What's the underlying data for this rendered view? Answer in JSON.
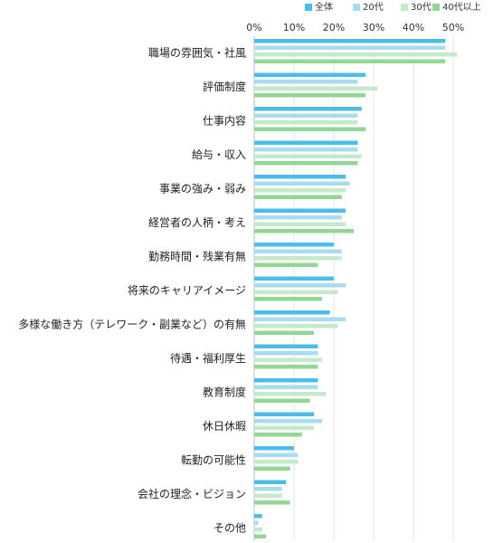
{
  "chart_data": {
    "type": "bar",
    "orientation": "horizontal",
    "categories": [
      "職場の雰囲気・社風",
      "評価制度",
      "仕事内容",
      "給与・収入",
      "事業の強み・弱み",
      "経営者の人柄・考え",
      "勤務時間・残業有無",
      "将来のキャリアイメージ",
      "多様な働き方（テレワーク・副業など）の有無",
      "待遇・福利厚生",
      "教育制度",
      "休日休暇",
      "転勤の可能性",
      "会社の理念・ビジョン",
      "その他"
    ],
    "series": [
      {
        "name": "全体",
        "color": "#4bbde8",
        "values": [
          48,
          28,
          27,
          26,
          23,
          23,
          20,
          20,
          19,
          16,
          16,
          15,
          10,
          8,
          2
        ]
      },
      {
        "name": "20代",
        "color": "#a9dcee",
        "values": [
          48,
          26,
          26,
          26,
          24,
          22,
          22,
          23,
          23,
          16,
          16,
          17,
          11,
          7,
          1
        ]
      },
      {
        "name": "30代",
        "color": "#c5e9cb",
        "values": [
          51,
          31,
          26,
          27,
          23,
          23,
          22,
          21,
          21,
          17,
          18,
          15,
          11,
          7,
          2
        ]
      },
      {
        "name": "40代以上",
        "color": "#93d796",
        "values": [
          48,
          28,
          28,
          26,
          22,
          25,
          16,
          17,
          15,
          16,
          14,
          12,
          9,
          9,
          3
        ]
      }
    ],
    "x_ticks": [
      "0%",
      "10%",
      "20%",
      "30%",
      "40%",
      "50%"
    ],
    "xlim": [
      0,
      55
    ],
    "grid": true,
    "legend": "top-right",
    "title": "",
    "xlabel": "",
    "ylabel": ""
  }
}
